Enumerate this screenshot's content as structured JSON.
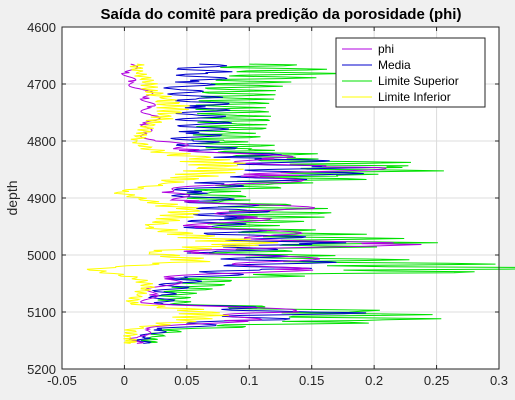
{
  "chart_data": {
    "type": "line",
    "title": "Saída do comitê para predição da porosidade (phi)",
    "xlabel": "",
    "ylabel": "depth",
    "xlim": [
      -0.05,
      0.3
    ],
    "ylim": [
      4600,
      5200
    ],
    "y_reversed": true,
    "grid": true,
    "legend_position": "top-right",
    "xticks": [
      "-0.05",
      "0",
      "0.05",
      "0.1",
      "0.15",
      "0.2",
      "0.25",
      "0.3"
    ],
    "yticks": [
      "4600",
      "4700",
      "4800",
      "4900",
      "5000",
      "5100",
      "5200"
    ],
    "series": [
      {
        "name": "phi",
        "color": "#b000e0",
        "depth": [
          4665,
          4680,
          4695,
          4710,
          4725,
          4740,
          4755,
          4770,
          4785,
          4800,
          4815,
          4830,
          4845,
          4860,
          4875,
          4890,
          4905,
          4920,
          4935,
          4950,
          4965,
          4980,
          4995,
          5010,
          5025,
          5040,
          5055,
          5070,
          5085,
          5100,
          5115,
          5130,
          5145,
          5155
        ],
        "values": [
          0.005,
          0.004,
          0.003,
          0.015,
          0.02,
          0.018,
          0.022,
          0.02,
          0.015,
          0.025,
          0.06,
          0.11,
          0.16,
          0.14,
          0.09,
          0.03,
          0.06,
          0.13,
          0.09,
          0.07,
          0.12,
          0.19,
          0.06,
          0.14,
          0.12,
          0.04,
          0.03,
          0.02,
          0.02,
          0.14,
          0.08,
          0.02,
          0.01,
          0.01
        ]
      },
      {
        "name": "Media",
        "color": "#0000cc",
        "depth": [
          4665,
          4680,
          4695,
          4710,
          4725,
          4740,
          4755,
          4770,
          4785,
          4800,
          4815,
          4830,
          4845,
          4860,
          4875,
          4890,
          4905,
          4920,
          4935,
          4950,
          4965,
          4980,
          4995,
          5010,
          5025,
          5040,
          5055,
          5070,
          5085,
          5100,
          5115,
          5130,
          5145,
          5155
        ],
        "values": [
          0.06,
          0.065,
          0.06,
          0.045,
          0.06,
          0.065,
          0.06,
          0.065,
          0.06,
          0.055,
          0.07,
          0.11,
          0.15,
          0.14,
          0.08,
          0.05,
          0.07,
          0.09,
          0.08,
          0.07,
          0.1,
          0.14,
          0.07,
          0.13,
          0.11,
          0.05,
          0.04,
          0.03,
          0.03,
          0.15,
          0.09,
          0.03,
          0.015,
          0.015
        ]
      },
      {
        "name": "Limite Superior",
        "color": "#00e000",
        "depth": [
          4665,
          4680,
          4695,
          4710,
          4725,
          4740,
          4755,
          4770,
          4785,
          4800,
          4815,
          4830,
          4845,
          4860,
          4875,
          4890,
          4905,
          4920,
          4935,
          4950,
          4965,
          4980,
          4995,
          5010,
          5025,
          5040,
          5055,
          5070,
          5085,
          5100,
          5115,
          5130,
          5145,
          5155
        ],
        "values": [
          0.1,
          0.135,
          0.1,
          0.09,
          0.09,
          0.085,
          0.09,
          0.09,
          0.085,
          0.08,
          0.1,
          0.13,
          0.21,
          0.17,
          0.12,
          0.07,
          0.08,
          0.13,
          0.12,
          0.09,
          0.15,
          0.19,
          0.09,
          0.18,
          0.29,
          0.07,
          0.06,
          0.04,
          0.04,
          0.18,
          0.19,
          0.04,
          0.02,
          0.02
        ]
      },
      {
        "name": "Limite Inferior",
        "color": "#ffff00",
        "depth": [
          4665,
          4680,
          4695,
          4710,
          4725,
          4740,
          4755,
          4770,
          4785,
          4800,
          4815,
          4830,
          4845,
          4860,
          4875,
          4890,
          4905,
          4920,
          4935,
          4950,
          4965,
          4980,
          4995,
          5010,
          5025,
          5040,
          5055,
          5070,
          5085,
          5100,
          5115,
          5130,
          5145,
          5155
        ],
        "values": [
          0.01,
          0.01,
          0.02,
          0.02,
          0.03,
          0.04,
          0.035,
          0.02,
          0.015,
          0.01,
          0.02,
          0.06,
          0.08,
          0.06,
          0.03,
          -0.005,
          0.02,
          0.05,
          0.04,
          0.02,
          0.05,
          0.1,
          0.02,
          0.06,
          -0.03,
          0.01,
          0.02,
          0.01,
          0.005,
          0.07,
          0.05,
          0.005,
          0.005,
          0.005
        ]
      }
    ]
  }
}
